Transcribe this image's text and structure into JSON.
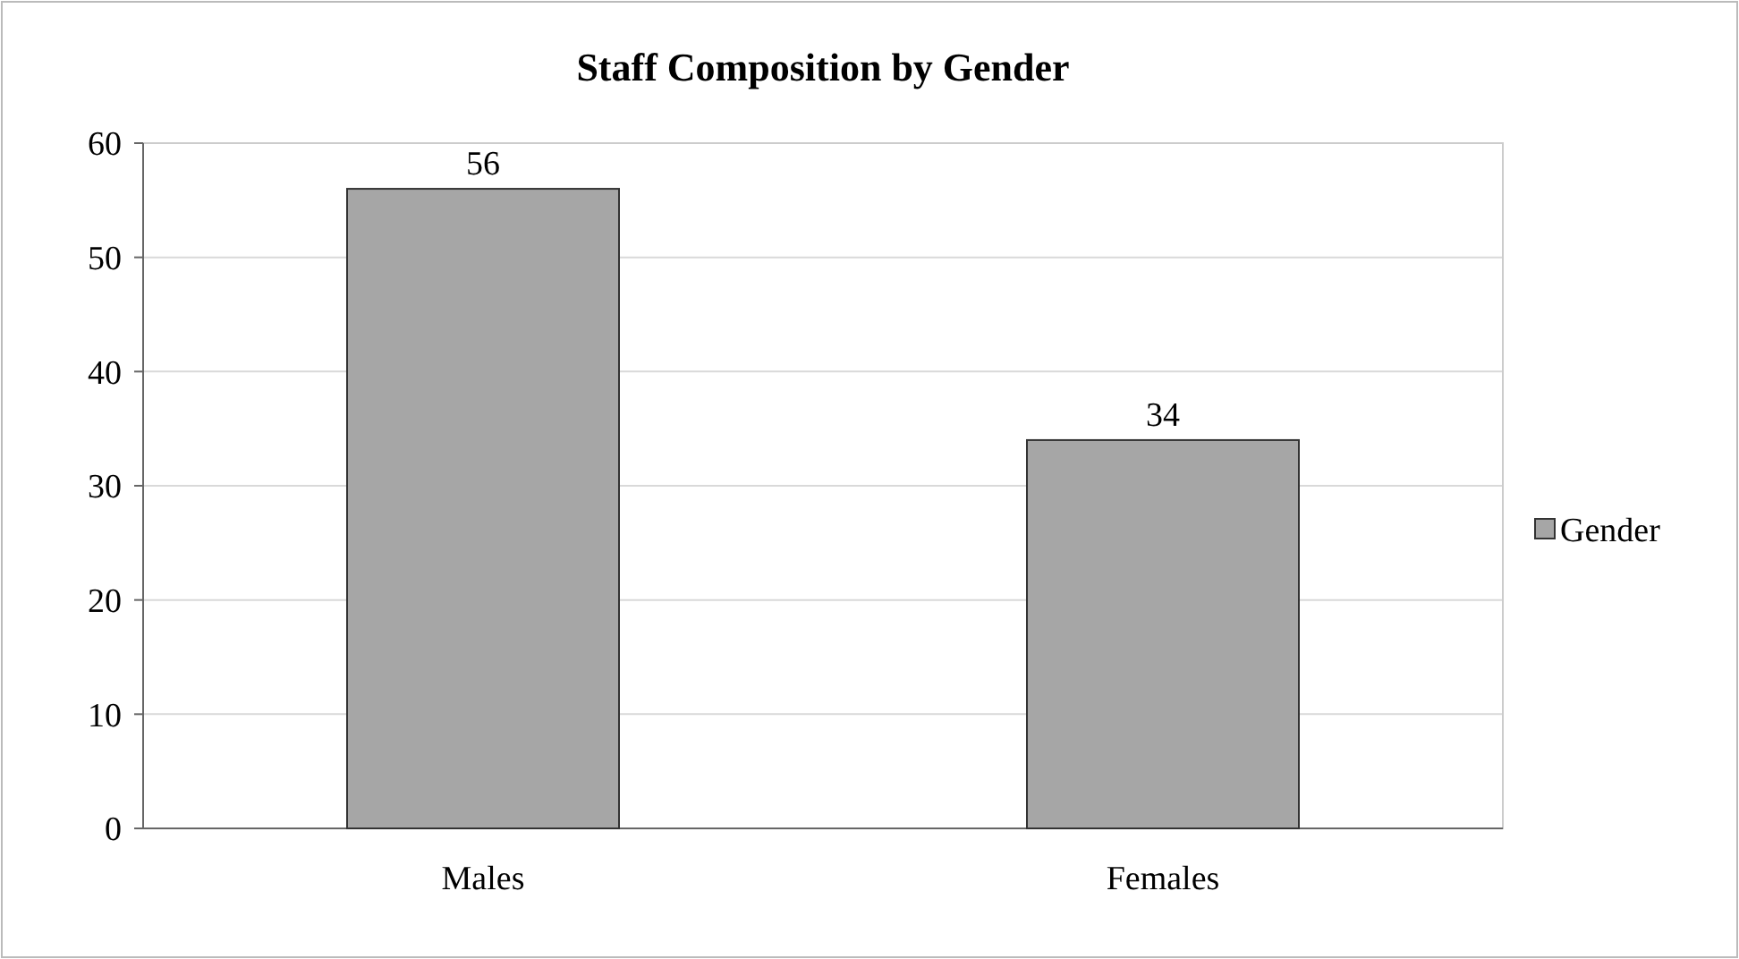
{
  "chart_data": {
    "type": "bar",
    "title": "Staff Composition by Gender",
    "categories": [
      "Males",
      "Females"
    ],
    "series": [
      {
        "name": "Gender",
        "color": "#a6a6a6",
        "values": [
          56,
          34
        ]
      }
    ],
    "ylim": [
      0,
      60
    ],
    "yticks": [
      0,
      10,
      20,
      30,
      40,
      50,
      60
    ],
    "grid": "y",
    "legend": "right",
    "data_labels": true
  }
}
